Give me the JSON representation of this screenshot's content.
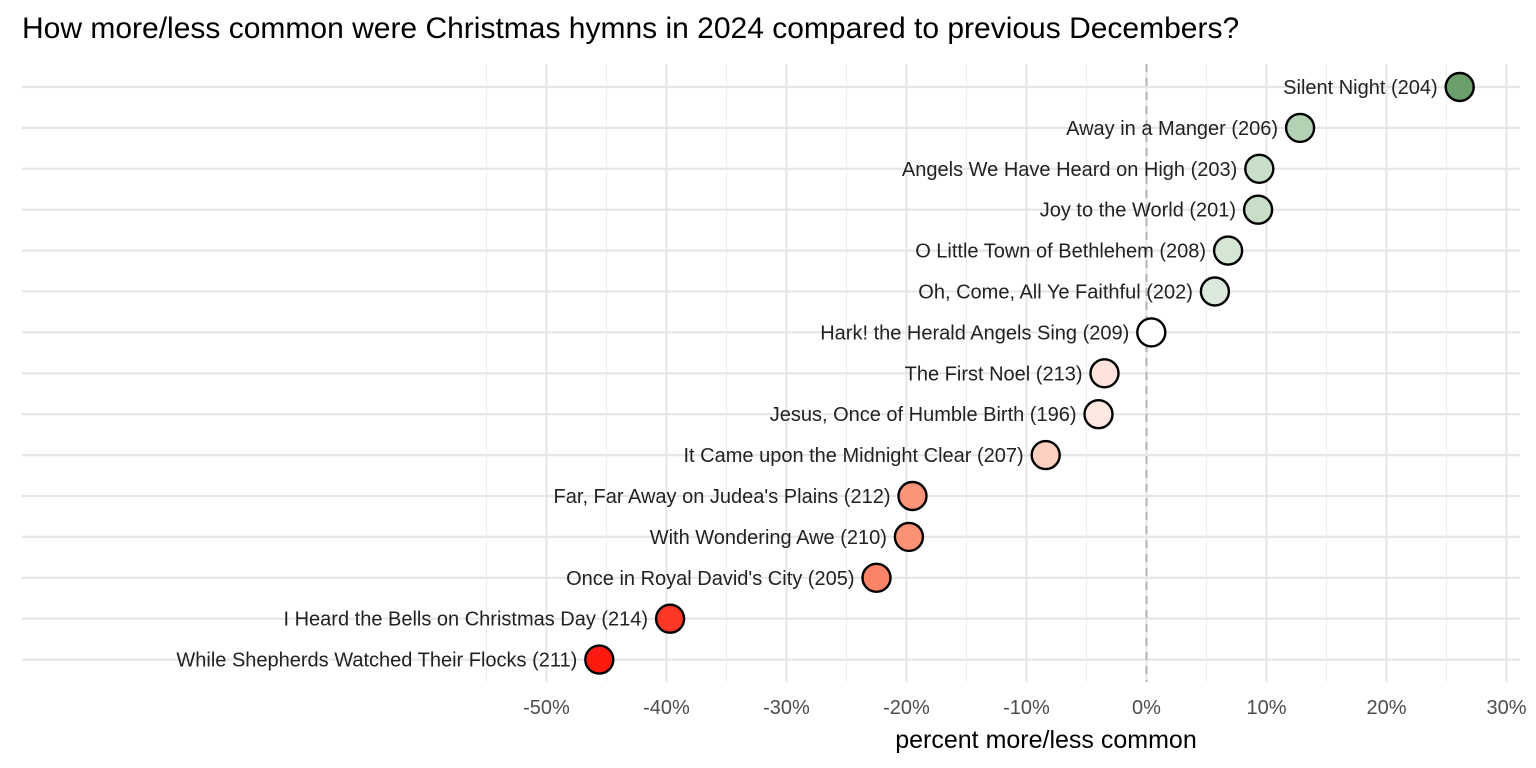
{
  "chart_data": {
    "type": "scatter",
    "title": "How more/less common were Christmas hymns in 2024 compared to previous Decembers?",
    "xlabel": "percent more/less common",
    "ylabel": "",
    "xlim": [
      -61,
      31
    ],
    "x_ticks": [
      -50,
      -40,
      -30,
      -20,
      -10,
      0,
      10,
      20,
      30
    ],
    "x_tick_labels": [
      "-50%",
      "-40%",
      "-30%",
      "-20%",
      "-10%",
      "0%",
      "10%",
      "20%",
      "30%"
    ],
    "reference_line": 0,
    "grid": true,
    "legend": "none",
    "points": [
      {
        "label": "Silent Night (204)",
        "value": 26.1,
        "color": "#6a9e6a"
      },
      {
        "label": "Away in a Manger (206)",
        "value": 12.8,
        "color": "#b3d1b3"
      },
      {
        "label": "Angels We Have Heard on High (203)",
        "value": 9.4,
        "color": "#c9dec9"
      },
      {
        "label": "Joy to the World (201)",
        "value": 9.3,
        "color": "#c9dec9"
      },
      {
        "label": "O Little Town of Bethlehem (208)",
        "value": 6.8,
        "color": "#d5e6d5"
      },
      {
        "label": "Oh, Come, All Ye Faithful (202)",
        "value": 5.7,
        "color": "#dbe9db"
      },
      {
        "label": "Hark! the Herald Angels Sing (209)",
        "value": 0.4,
        "color": "#ffffff"
      },
      {
        "label": "The First Noel (213)",
        "value": -3.5,
        "color": "#fde3dc"
      },
      {
        "label": "Jesus, Once of Humble Birth (196)",
        "value": -4.0,
        "color": "#fde7e1"
      },
      {
        "label": "It Came upon the Midnight Clear (207)",
        "value": -8.4,
        "color": "#fdd0c2"
      },
      {
        "label": "Far, Far Away on Judea's Plains (212)",
        "value": -19.5,
        "color": "#fb9478"
      },
      {
        "label": "With Wondering Awe (210)",
        "value": -19.8,
        "color": "#fb9276"
      },
      {
        "label": "Once in Royal David's City (205)",
        "value": -22.5,
        "color": "#fb8367"
      },
      {
        "label": "I Heard the Bells on Christmas Day (214)",
        "value": -39.7,
        "color": "#fc3726"
      },
      {
        "label": "While Shepherds Watched Their Flocks (211)",
        "value": -45.6,
        "color": "#ff1a0f"
      }
    ]
  }
}
